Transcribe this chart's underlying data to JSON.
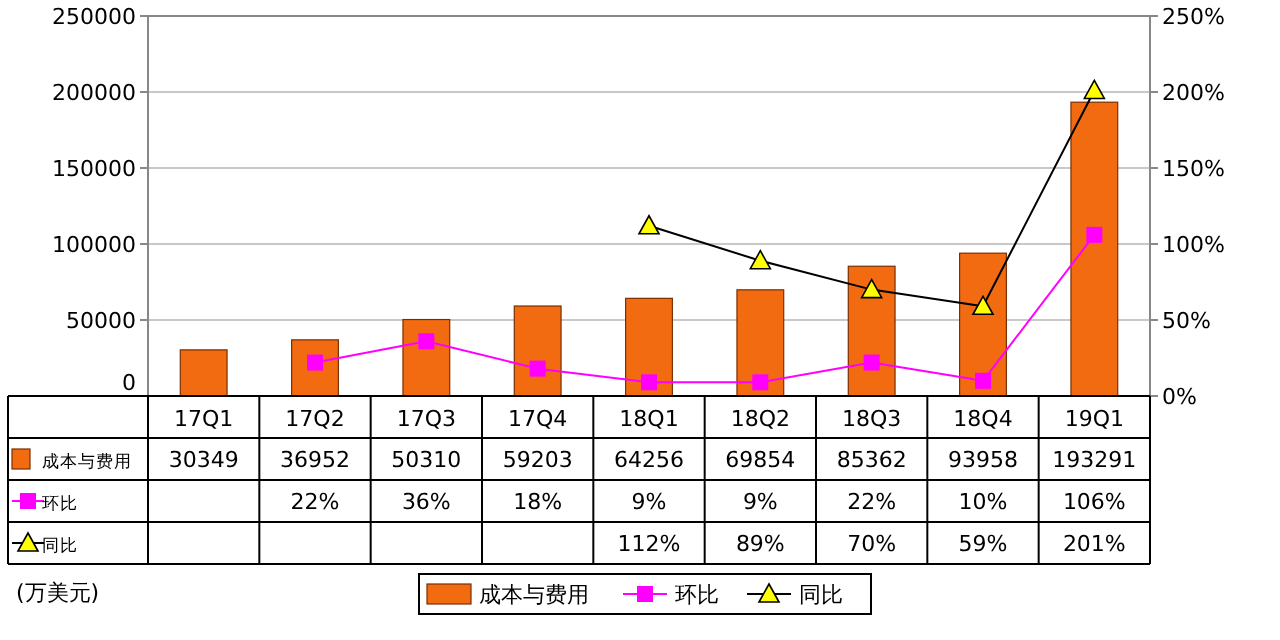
{
  "chart_data": {
    "type": "bar",
    "categories": [
      "17Q1",
      "17Q2",
      "17Q3",
      "17Q4",
      "18Q1",
      "18Q2",
      "18Q3",
      "18Q4",
      "19Q1"
    ],
    "series": [
      {
        "name": "成本与费用",
        "color": "#f26b10",
        "values": [
          30349,
          36952,
          50310,
          59203,
          64256,
          69854,
          85362,
          93958,
          193291
        ],
        "value_labels": [
          "30349",
          "36952",
          "50310",
          "59203",
          "64256",
          "69854",
          "85362",
          "93958",
          "193291"
        ]
      },
      {
        "name": "环比",
        "type": "line",
        "axis": "y2",
        "color": "#ff00ff",
        "marker": "square",
        "values": [
          null,
          22,
          36,
          18,
          9,
          9,
          22,
          10,
          106
        ],
        "value_labels": [
          null,
          "22%",
          "36%",
          "18%",
          "9%",
          "9%",
          "22%",
          "10%",
          "106%"
        ]
      },
      {
        "name": "同比",
        "type": "line",
        "axis": "y2",
        "color": "#000000",
        "marker": "triangle",
        "values": [
          null,
          null,
          null,
          null,
          112,
          89,
          70,
          59,
          201
        ],
        "value_labels": [
          null,
          null,
          null,
          null,
          "112%",
          "89%",
          "70%",
          "59%",
          "201%"
        ]
      }
    ],
    "ylim": [
      0,
      250000
    ],
    "yticks": [
      0,
      50000,
      100000,
      150000,
      200000,
      250000
    ],
    "y2lim": [
      0,
      250
    ],
    "y2ticks": [
      {
        "value": 0,
        "label": "0%"
      },
      {
        "value": 50,
        "label": "50%"
      },
      {
        "value": 100,
        "label": "100%"
      },
      {
        "value": 150,
        "label": "150%"
      },
      {
        "value": 200,
        "label": "200%"
      },
      {
        "value": 250,
        "label": "250%"
      }
    ],
    "grid": "y",
    "legend": "bottom",
    "annotations": [
      "(万美元)"
    ]
  }
}
